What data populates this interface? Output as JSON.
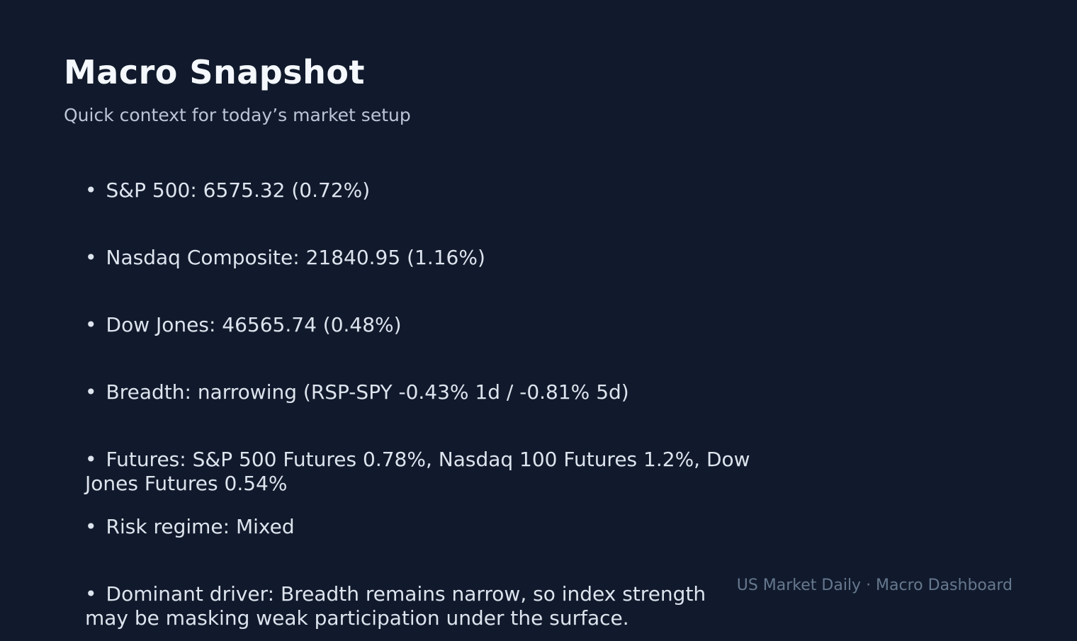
{
  "slide": {
    "title": "Macro Snapshot",
    "subtitle": "Quick context for today’s market setup",
    "bullet_char": "•",
    "bullets": [
      [
        "S&P 500: 6575.32 (0.72%)"
      ],
      [
        "Nasdaq Composite: 21840.95 (1.16%)"
      ],
      [
        "Dow Jones: 46565.74 (0.48%)"
      ],
      [
        "Breadth: narrowing (RSP-SPY -0.43% 1d / -0.81% 5d)"
      ],
      [
        "Futures: S&P 500 Futures 0.78%, Nasdaq 100 Futures 1.2%, Dow",
        "Jones Futures 0.54%"
      ],
      [
        "Risk regime: Mixed"
      ],
      [
        "Dominant driver: Breadth remains narrow, so index strength",
        "may be masking weak participation under the surface."
      ]
    ],
    "footer": "US Market Daily · Macro Dashboard",
    "colors": {
      "background": "#111a2c",
      "title": "#f4f7fb",
      "subtitle": "#bac5d5",
      "bullet_text": "#dde4ee",
      "footer": "#66788f"
    }
  }
}
